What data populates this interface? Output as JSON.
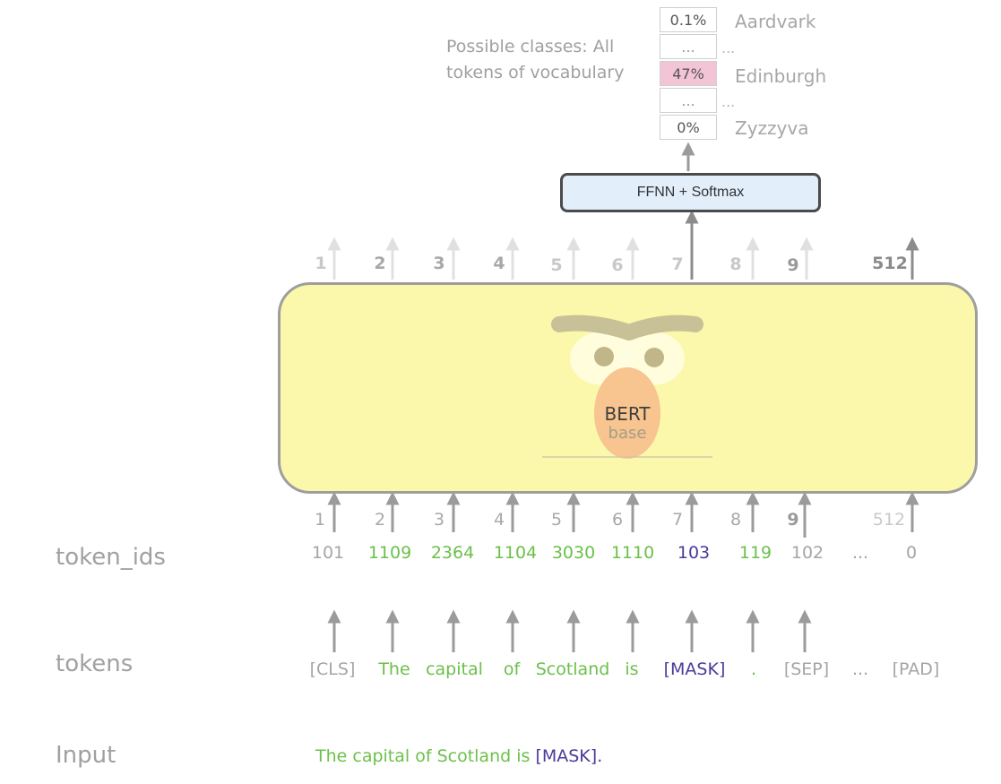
{
  "classes_caption_line1": "Possible classes: All",
  "classes_caption_line2": "tokens of vocabulary",
  "probabilities": [
    {
      "prob": "0.1%",
      "label": "Aardvark",
      "highlight": false
    },
    {
      "prob": "...",
      "label": "...",
      "highlight": false
    },
    {
      "prob": "47%",
      "label": "Edinburgh",
      "highlight": true
    },
    {
      "prob": "...",
      "label": "...",
      "highlight": false
    },
    {
      "prob": "0%",
      "label": "Zyzzyva",
      "highlight": false
    }
  ],
  "ffnn_label": "FFNN + Softmax",
  "top_positions": [
    "1",
    "2",
    "3",
    "4",
    "5",
    "6",
    "7",
    "8",
    "9",
    "512"
  ],
  "bottom_positions": [
    "1",
    "2",
    "3",
    "4",
    "5",
    "6",
    "7",
    "8",
    "9",
    "512"
  ],
  "bert": {
    "name": "BERT",
    "variant": "base"
  },
  "row_labels": {
    "token_ids": "token_ids",
    "tokens": "tokens",
    "input": "Input"
  },
  "token_ids": [
    "101",
    "1109",
    "2364",
    "1104",
    "3030",
    "1110",
    "103",
    "119",
    "102",
    "...",
    "0"
  ],
  "tokens": [
    "[CLS]",
    "The",
    "capital",
    "of",
    "Scotland",
    "is",
    "[MASK]",
    ".",
    "[SEP]",
    "...",
    "[PAD]"
  ],
  "input_sentence": {
    "plain": "The capital of Scotland is ",
    "mask": "[MASK]",
    "end": "."
  },
  "colors": {
    "green": "#6cc04a",
    "purple": "#4b3a9a",
    "grey_text": "#a5a5a5",
    "bert_fill": "#fbf7ab",
    "ffnn_fill": "#e3eefb",
    "highlight_fill": "#f2c4d6",
    "arrow": "#9b9b9b"
  }
}
